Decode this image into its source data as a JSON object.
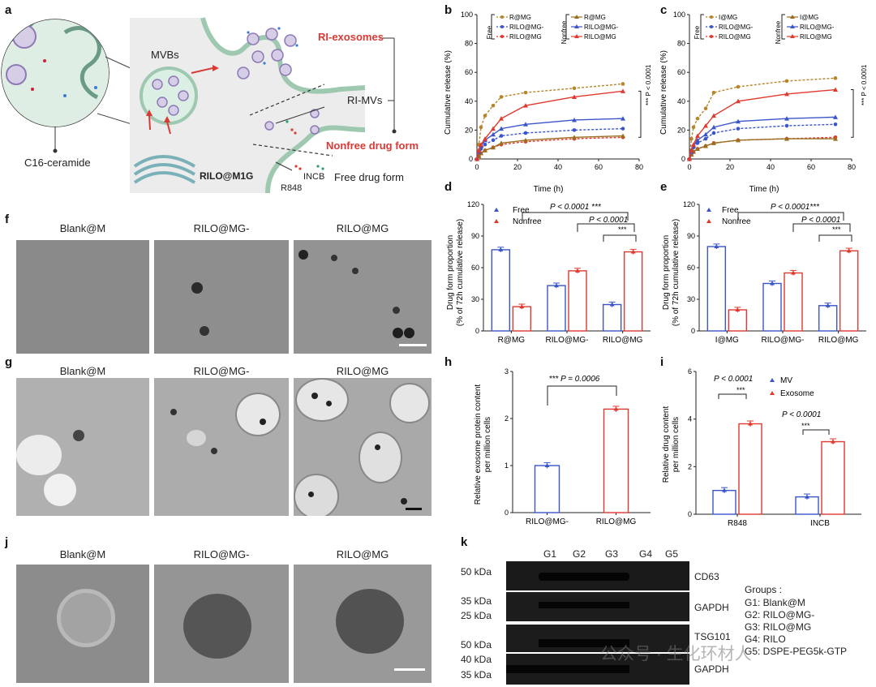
{
  "panels": {
    "a": "a",
    "b": "b",
    "c": "c",
    "d": "d",
    "e": "e",
    "f": "f",
    "g": "g",
    "h": "h",
    "i": "i",
    "j": "j",
    "k": "k"
  },
  "schematic": {
    "c16": "C16-ceramide",
    "mvbs": "MVBs",
    "ri_exosomes": "RI-exosomes",
    "ri_mvs": "RI-MVs",
    "nonfree": "Nonfree drug form",
    "free": "Free drug form",
    "rilo": "RILO@M1G",
    "incb": "INCB",
    "r848": "R848"
  },
  "release_b": {
    "xlabel": "Time (h)",
    "ylabel": "Cumulative release (%)",
    "free_label": "Free",
    "nonfree_label": "Nonfree",
    "legend_free": [
      "R@MG",
      "RILO@MG-",
      "RILO@MG"
    ],
    "legend_nonfree": [
      "R@MG",
      "RILO@MG-",
      "RILO@MG"
    ],
    "pval": "*** P < 0.0001",
    "xticks": [
      "0",
      "20",
      "40",
      "60",
      "80"
    ],
    "yticks": [
      "0",
      "20",
      "40",
      "60",
      "80",
      "100"
    ]
  },
  "release_c": {
    "xlabel": "Time (h)",
    "ylabel": "Cumulative release (%)",
    "free_label": "Free",
    "nonfree_label": "Nonfree",
    "legend_free": [
      "I@MG",
      "RILO@MG-",
      "RILO@MG"
    ],
    "legend_nonfree": [
      "I@MG",
      "RILO@MG-",
      "RILO@MG"
    ],
    "pval": "*** P < 0.0001",
    "xticks": [
      "0",
      "20",
      "40",
      "60",
      "80"
    ],
    "yticks": [
      "0",
      "20",
      "40",
      "60",
      "80",
      "100"
    ]
  },
  "bar_d": {
    "ylabel1": "Drug form proportion",
    "ylabel2": "(% of 72h cumulative release)",
    "legend": [
      "Free",
      "Nonfree"
    ],
    "categories": [
      "R@MG",
      "RILO@MG-",
      "RILO@MG"
    ],
    "p1": "P < 0.0001 ***",
    "p2": "P < 0.0001",
    "p3": "***",
    "yticks": [
      "0",
      "30",
      "60",
      "90",
      "120"
    ]
  },
  "bar_e": {
    "ylabel1": "Drug form proportion",
    "ylabel2": "(% of 72h cumulative release)",
    "legend": [
      "Free",
      "Nonfree"
    ],
    "categories": [
      "I@MG",
      "RILO@MG-",
      "RILO@MG"
    ],
    "p1": "P < 0.0001***",
    "p2": "P < 0.0001",
    "p3": "***",
    "yticks": [
      "0",
      "30",
      "60",
      "90",
      "120"
    ]
  },
  "bar_h": {
    "ylabel1": "Relative exosome protein content",
    "ylabel2": "per million cells",
    "categories": [
      "RILO@MG-",
      "RILO@MG"
    ],
    "p": "*** P = 0.0006",
    "yticks": [
      "0",
      "1",
      "2",
      "3"
    ]
  },
  "bar_i": {
    "ylabel1": "Relative drug content",
    "ylabel2": "per million cells",
    "legend": [
      "MV",
      "Exosome"
    ],
    "categories": [
      "R848",
      "INCB"
    ],
    "p1": "P < 0.0001",
    "p1s": "***",
    "p2": "P < 0.0001",
    "p2s": "***",
    "yticks": [
      "0",
      "2",
      "4",
      "6"
    ]
  },
  "images": {
    "f_titles": [
      "Blank@M",
      "RILO@MG-",
      "RILO@MG"
    ],
    "g_titles": [
      "Blank@M",
      "RILO@MG-",
      "RILO@MG"
    ],
    "j_titles": [
      "Blank@M",
      "RILO@MG-",
      "RILO@MG"
    ]
  },
  "western": {
    "lanes": [
      "G1",
      "G2",
      "G3",
      "G4",
      "G5"
    ],
    "kda": [
      "50 kDa",
      "35 kDa",
      "25 kDa",
      "50 kDa",
      "40 kDa",
      "35 kDa"
    ],
    "bands": [
      "CD63",
      "GAPDH",
      "TSG101",
      "GAPDH"
    ],
    "groups_title": "Groups :",
    "groups": [
      "G1: Blank@M",
      "G2: RILO@MG-",
      "G3: RILO@MG",
      "G4: RILO",
      "G5: DSPE-PEG5k-GTP"
    ],
    "watermark": "公众号 · 生化环材人"
  },
  "chart_data": [
    {
      "type": "line",
      "panel": "b",
      "xlabel": "Time (h)",
      "ylabel": "Cumulative release (%)",
      "xlim": [
        0,
        80
      ],
      "ylim": [
        0,
        100
      ],
      "x": [
        0,
        1,
        2,
        4,
        8,
        12,
        24,
        48,
        72
      ],
      "series": [
        {
          "name": "Free R@MG",
          "color": "#b5862b",
          "dashed": true,
          "marker": "circle",
          "values": [
            0,
            10,
            22,
            30,
            37,
            43,
            46,
            49,
            52
          ]
        },
        {
          "name": "Free RILO@MG-",
          "color": "#3b55c9",
          "dashed": true,
          "marker": "circle",
          "values": [
            0,
            4,
            7,
            10,
            13,
            16,
            18,
            20,
            21
          ]
        },
        {
          "name": "Free RILO@MG",
          "color": "#e0392f",
          "dashed": true,
          "marker": "circle",
          "values": [
            0,
            2,
            4,
            6,
            8,
            10,
            12,
            14,
            15
          ]
        },
        {
          "name": "Nonfree R@MG",
          "color": "#9a6e1f",
          "dashed": false,
          "marker": "triangle",
          "values": [
            0,
            2,
            4,
            6,
            8,
            11,
            13,
            15,
            16
          ]
        },
        {
          "name": "Nonfree RILO@MG-",
          "color": "#3b55c9",
          "dashed": false,
          "marker": "triangle",
          "values": [
            0,
            5,
            9,
            13,
            17,
            21,
            24,
            27,
            28
          ]
        },
        {
          "name": "Nonfree RILO@MG",
          "color": "#e0392f",
          "dashed": false,
          "marker": "triangle",
          "values": [
            0,
            6,
            10,
            14,
            21,
            28,
            37,
            43,
            47
          ]
        }
      ]
    },
    {
      "type": "line",
      "panel": "c",
      "xlabel": "Time (h)",
      "ylabel": "Cumulative release (%)",
      "xlim": [
        0,
        80
      ],
      "ylim": [
        0,
        100
      ],
      "x": [
        0,
        1,
        2,
        4,
        8,
        12,
        24,
        48,
        72
      ],
      "series": [
        {
          "name": "Free I@MG",
          "color": "#b5862b",
          "dashed": true,
          "marker": "circle",
          "values": [
            0,
            14,
            22,
            28,
            35,
            46,
            50,
            54,
            56
          ]
        },
        {
          "name": "Free RILO@MG-",
          "color": "#3b55c9",
          "dashed": true,
          "marker": "circle",
          "values": [
            0,
            5,
            8,
            11,
            14,
            18,
            21,
            23,
            24
          ]
        },
        {
          "name": "Free RILO@MG",
          "color": "#e0392f",
          "dashed": true,
          "marker": "circle",
          "values": [
            0,
            3,
            5,
            7,
            9,
            11,
            13,
            14,
            15
          ]
        },
        {
          "name": "Nonfree I@MG",
          "color": "#9a6e1f",
          "dashed": false,
          "marker": "triangle",
          "values": [
            0,
            3,
            5,
            7,
            9,
            11,
            13,
            14,
            14
          ]
        },
        {
          "name": "Nonfree RILO@MG-",
          "color": "#3b55c9",
          "dashed": false,
          "marker": "triangle",
          "values": [
            0,
            5,
            9,
            13,
            17,
            22,
            26,
            28,
            29
          ]
        },
        {
          "name": "Nonfree RILO@MG",
          "color": "#e0392f",
          "dashed": false,
          "marker": "triangle",
          "values": [
            0,
            6,
            10,
            16,
            23,
            30,
            40,
            45,
            48
          ]
        }
      ]
    },
    {
      "type": "bar",
      "panel": "d",
      "categories": [
        "R@MG",
        "RILO@MG-",
        "RILO@MG"
      ],
      "ylabel": "Drug form proportion (% of 72h cumulative release)",
      "ylim": [
        0,
        120
      ],
      "series": [
        {
          "name": "Free",
          "color": "#3b55c9",
          "values": [
            77,
            43,
            25
          ]
        },
        {
          "name": "Nonfree",
          "color": "#e0392f",
          "values": [
            23,
            57,
            75
          ]
        }
      ]
    },
    {
      "type": "bar",
      "panel": "e",
      "categories": [
        "I@MG",
        "RILO@MG-",
        "RILO@MG"
      ],
      "ylabel": "Drug form proportion (% of 72h cumulative release)",
      "ylim": [
        0,
        120
      ],
      "series": [
        {
          "name": "Free",
          "color": "#3b55c9",
          "values": [
            80,
            45,
            24
          ]
        },
        {
          "name": "Nonfree",
          "color": "#e0392f",
          "values": [
            20,
            55,
            76
          ]
        }
      ]
    },
    {
      "type": "bar",
      "panel": "h",
      "categories": [
        "RILO@MG-",
        "RILO@MG"
      ],
      "ylabel": "Relative exosome protein content per million cells",
      "ylim": [
        0,
        3
      ],
      "series": [
        {
          "colors": [
            "#3b55c9",
            "#e0392f"
          ],
          "values": [
            1.0,
            2.2
          ]
        }
      ]
    },
    {
      "type": "bar",
      "panel": "i",
      "categories": [
        "R848",
        "INCB"
      ],
      "ylabel": "Relative drug content per million cells",
      "ylim": [
        0,
        6
      ],
      "series": [
        {
          "name": "MV",
          "color": "#3b55c9",
          "values": [
            1.0,
            0.73
          ]
        },
        {
          "name": "Exosome",
          "color": "#e0392f",
          "values": [
            3.8,
            3.05
          ]
        }
      ]
    }
  ]
}
